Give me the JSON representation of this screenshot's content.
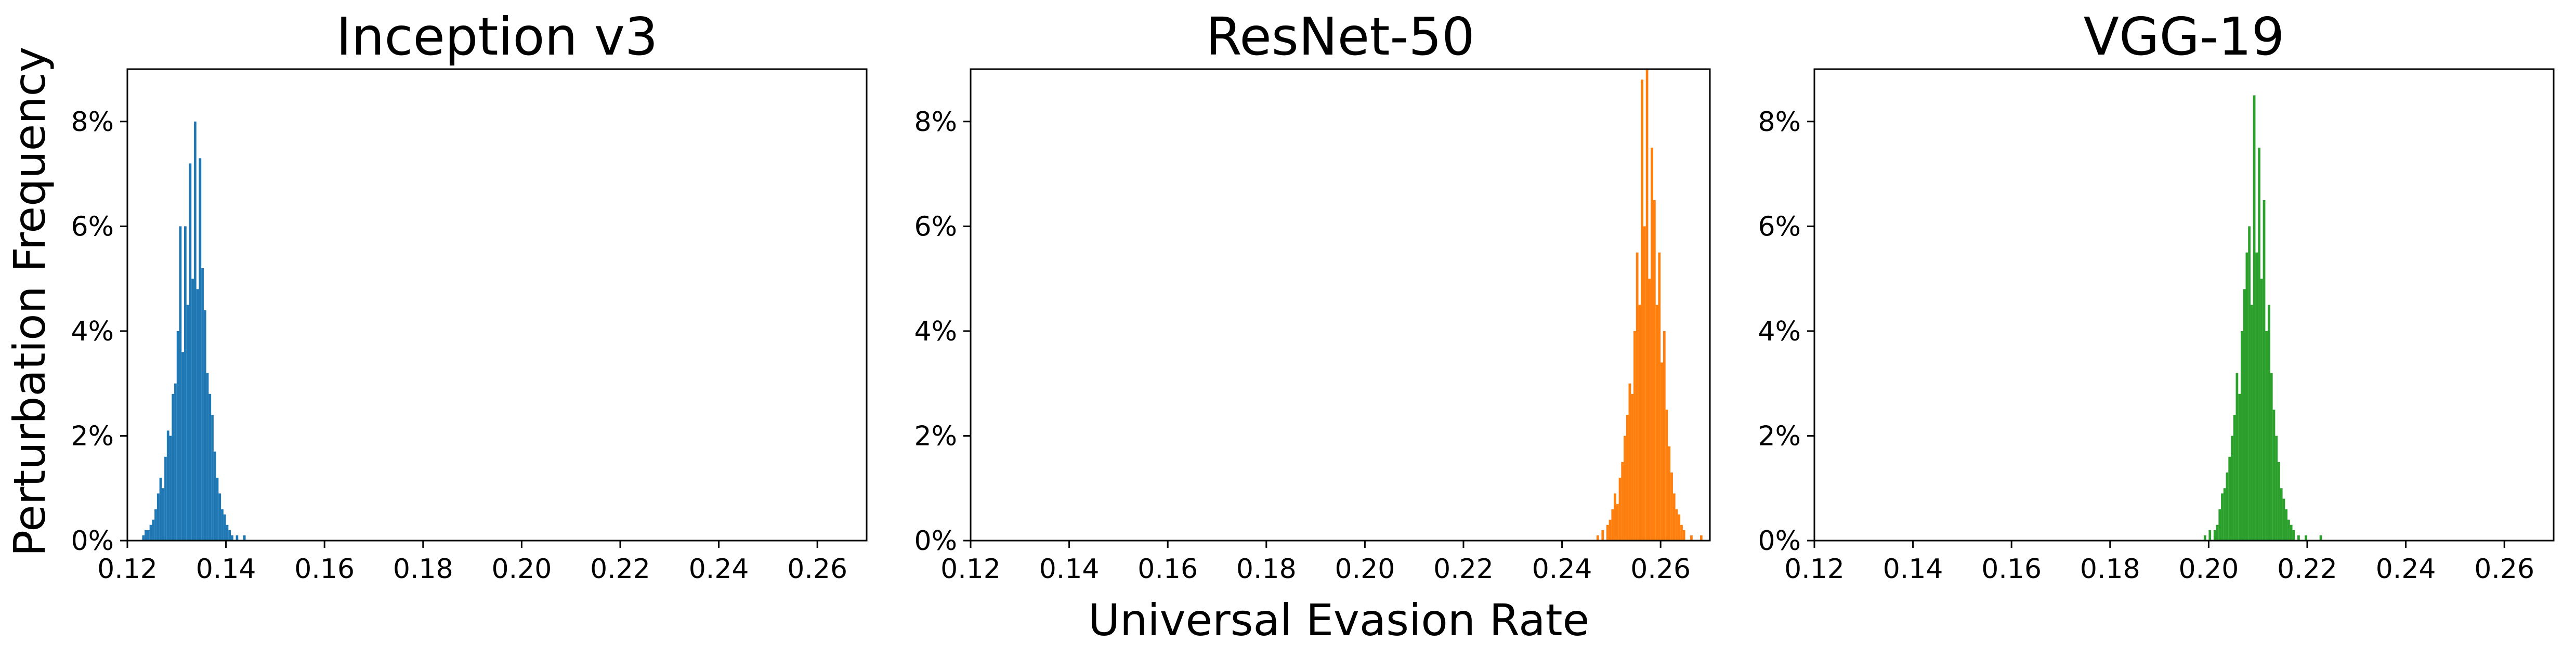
{
  "figure": {
    "ylabel": "Perturbation Frequency",
    "xlabel": "Universal Evasion Rate"
  },
  "chart_data": [
    {
      "type": "bar",
      "title": "Inception v3",
      "color": "#1f77b4",
      "xlim": [
        0.12,
        0.27
      ],
      "ylim": [
        0,
        0.09
      ],
      "xticks": [
        0.12,
        0.14,
        0.16,
        0.18,
        0.2,
        0.22,
        0.24,
        0.26
      ],
      "xticklabels": [
        "0.12",
        "0.14",
        "0.16",
        "0.18",
        "0.20",
        "0.22",
        "0.24",
        "0.26"
      ],
      "yticks": [
        0,
        0.02,
        0.04,
        0.06,
        0.08
      ],
      "yticklabels": [
        "0%",
        "2%",
        "4%",
        "6%",
        "8%"
      ],
      "bin_width": 0.0005,
      "bins": [
        {
          "x": 0.123,
          "y": 0.001
        },
        {
          "x": 0.1235,
          "y": 0.002
        },
        {
          "x": 0.124,
          "y": 0.002
        },
        {
          "x": 0.1245,
          "y": 0.003
        },
        {
          "x": 0.125,
          "y": 0.004
        },
        {
          "x": 0.1255,
          "y": 0.006
        },
        {
          "x": 0.126,
          "y": 0.009
        },
        {
          "x": 0.1265,
          "y": 0.012
        },
        {
          "x": 0.127,
          "y": 0.01
        },
        {
          "x": 0.1275,
          "y": 0.016
        },
        {
          "x": 0.128,
          "y": 0.021
        },
        {
          "x": 0.1285,
          "y": 0.02
        },
        {
          "x": 0.129,
          "y": 0.028
        },
        {
          "x": 0.1295,
          "y": 0.03
        },
        {
          "x": 0.13,
          "y": 0.04
        },
        {
          "x": 0.1305,
          "y": 0.06
        },
        {
          "x": 0.131,
          "y": 0.036
        },
        {
          "x": 0.1315,
          "y": 0.06
        },
        {
          "x": 0.132,
          "y": 0.045
        },
        {
          "x": 0.1325,
          "y": 0.072
        },
        {
          "x": 0.133,
          "y": 0.05
        },
        {
          "x": 0.1335,
          "y": 0.08
        },
        {
          "x": 0.134,
          "y": 0.048
        },
        {
          "x": 0.1345,
          "y": 0.073
        },
        {
          "x": 0.135,
          "y": 0.052
        },
        {
          "x": 0.1355,
          "y": 0.044
        },
        {
          "x": 0.136,
          "y": 0.032
        },
        {
          "x": 0.1365,
          "y": 0.028
        },
        {
          "x": 0.137,
          "y": 0.024
        },
        {
          "x": 0.1375,
          "y": 0.017
        },
        {
          "x": 0.138,
          "y": 0.012
        },
        {
          "x": 0.1385,
          "y": 0.009
        },
        {
          "x": 0.139,
          "y": 0.006
        },
        {
          "x": 0.1395,
          "y": 0.005
        },
        {
          "x": 0.14,
          "y": 0.003
        },
        {
          "x": 0.1405,
          "y": 0.002
        },
        {
          "x": 0.141,
          "y": 0.001
        },
        {
          "x": 0.142,
          "y": 0.001
        },
        {
          "x": 0.1435,
          "y": 0.001
        }
      ]
    },
    {
      "type": "bar",
      "title": "ResNet-50",
      "color": "#ff7f0e",
      "xlim": [
        0.12,
        0.27
      ],
      "ylim": [
        0,
        0.09
      ],
      "xticks": [
        0.12,
        0.14,
        0.16,
        0.18,
        0.2,
        0.22,
        0.24,
        0.26
      ],
      "xticklabels": [
        "0.12",
        "0.14",
        "0.16",
        "0.18",
        "0.20",
        "0.22",
        "0.24",
        "0.26"
      ],
      "yticks": [
        0,
        0.02,
        0.04,
        0.06,
        0.08
      ],
      "yticklabels": [
        "0%",
        "2%",
        "4%",
        "6%",
        "8%"
      ],
      "bin_width": 0.0005,
      "bins": [
        {
          "x": 0.247,
          "y": 0.001
        },
        {
          "x": 0.248,
          "y": 0.002
        },
        {
          "x": 0.249,
          "y": 0.003
        },
        {
          "x": 0.2495,
          "y": 0.004
        },
        {
          "x": 0.25,
          "y": 0.006
        },
        {
          "x": 0.2505,
          "y": 0.009
        },
        {
          "x": 0.251,
          "y": 0.007
        },
        {
          "x": 0.2515,
          "y": 0.012
        },
        {
          "x": 0.252,
          "y": 0.015
        },
        {
          "x": 0.2525,
          "y": 0.02
        },
        {
          "x": 0.253,
          "y": 0.024
        },
        {
          "x": 0.2535,
          "y": 0.03
        },
        {
          "x": 0.254,
          "y": 0.028
        },
        {
          "x": 0.2545,
          "y": 0.04
        },
        {
          "x": 0.255,
          "y": 0.055
        },
        {
          "x": 0.2555,
          "y": 0.045
        },
        {
          "x": 0.256,
          "y": 0.088
        },
        {
          "x": 0.2565,
          "y": 0.06
        },
        {
          "x": 0.257,
          "y": 0.09
        },
        {
          "x": 0.2575,
          "y": 0.05
        },
        {
          "x": 0.258,
          "y": 0.075
        },
        {
          "x": 0.2585,
          "y": 0.065
        },
        {
          "x": 0.259,
          "y": 0.045
        },
        {
          "x": 0.2595,
          "y": 0.055
        },
        {
          "x": 0.26,
          "y": 0.034
        },
        {
          "x": 0.2605,
          "y": 0.04
        },
        {
          "x": 0.261,
          "y": 0.025
        },
        {
          "x": 0.2615,
          "y": 0.018
        },
        {
          "x": 0.262,
          "y": 0.013
        },
        {
          "x": 0.2625,
          "y": 0.009
        },
        {
          "x": 0.263,
          "y": 0.006
        },
        {
          "x": 0.2635,
          "y": 0.005
        },
        {
          "x": 0.264,
          "y": 0.003
        },
        {
          "x": 0.2645,
          "y": 0.002
        },
        {
          "x": 0.266,
          "y": 0.001
        },
        {
          "x": 0.268,
          "y": 0.001
        }
      ]
    },
    {
      "type": "bar",
      "title": "VGG-19",
      "color": "#2ca02c",
      "xlim": [
        0.12,
        0.27
      ],
      "ylim": [
        0,
        0.09
      ],
      "xticks": [
        0.12,
        0.14,
        0.16,
        0.18,
        0.2,
        0.22,
        0.24,
        0.26
      ],
      "xticklabels": [
        "0.12",
        "0.14",
        "0.16",
        "0.18",
        "0.20",
        "0.22",
        "0.24",
        "0.26"
      ],
      "yticks": [
        0,
        0.02,
        0.04,
        0.06,
        0.08
      ],
      "yticklabels": [
        "0%",
        "2%",
        "4%",
        "6%",
        "8%"
      ],
      "bin_width": 0.0005,
      "bins": [
        {
          "x": 0.199,
          "y": 0.001
        },
        {
          "x": 0.2,
          "y": 0.002
        },
        {
          "x": 0.201,
          "y": 0.002
        },
        {
          "x": 0.2015,
          "y": 0.003
        },
        {
          "x": 0.202,
          "y": 0.006
        },
        {
          "x": 0.2025,
          "y": 0.009
        },
        {
          "x": 0.203,
          "y": 0.01
        },
        {
          "x": 0.2035,
          "y": 0.013
        },
        {
          "x": 0.204,
          "y": 0.016
        },
        {
          "x": 0.2045,
          "y": 0.02
        },
        {
          "x": 0.205,
          "y": 0.024
        },
        {
          "x": 0.2055,
          "y": 0.032
        },
        {
          "x": 0.206,
          "y": 0.028
        },
        {
          "x": 0.2065,
          "y": 0.04
        },
        {
          "x": 0.207,
          "y": 0.048
        },
        {
          "x": 0.2075,
          "y": 0.055
        },
        {
          "x": 0.208,
          "y": 0.06
        },
        {
          "x": 0.2085,
          "y": 0.045
        },
        {
          "x": 0.209,
          "y": 0.085
        },
        {
          "x": 0.2095,
          "y": 0.055
        },
        {
          "x": 0.21,
          "y": 0.075
        },
        {
          "x": 0.2105,
          "y": 0.05
        },
        {
          "x": 0.211,
          "y": 0.065
        },
        {
          "x": 0.2115,
          "y": 0.04
        },
        {
          "x": 0.212,
          "y": 0.045
        },
        {
          "x": 0.2125,
          "y": 0.032
        },
        {
          "x": 0.213,
          "y": 0.025
        },
        {
          "x": 0.2135,
          "y": 0.02
        },
        {
          "x": 0.214,
          "y": 0.015
        },
        {
          "x": 0.2145,
          "y": 0.01
        },
        {
          "x": 0.215,
          "y": 0.008
        },
        {
          "x": 0.2155,
          "y": 0.006
        },
        {
          "x": 0.216,
          "y": 0.004
        },
        {
          "x": 0.2165,
          "y": 0.003
        },
        {
          "x": 0.217,
          "y": 0.002
        },
        {
          "x": 0.218,
          "y": 0.001
        },
        {
          "x": 0.2195,
          "y": 0.001
        },
        {
          "x": 0.2225,
          "y": 0.001
        }
      ]
    }
  ]
}
